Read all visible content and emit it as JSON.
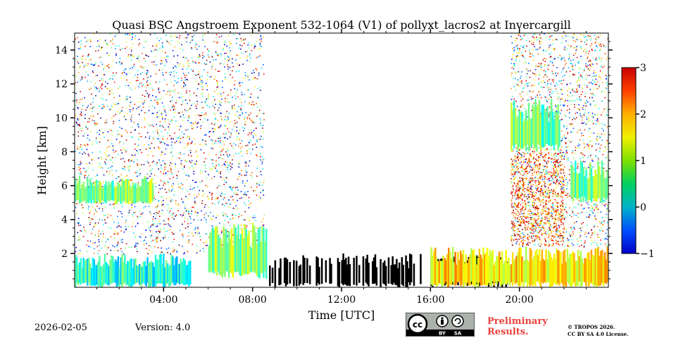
{
  "chart_data": {
    "type": "heatmap",
    "title": "Quasi BSC Angstroem Exponent 532-1064 (V1) of pollyxt_lacros2 at Invercargill",
    "xlabel": "Time [UTC]",
    "ylabel": "Height [km]",
    "xlim": [
      0,
      24
    ],
    "ylim": [
      0,
      15
    ],
    "x_ticks": [
      4,
      8,
      12,
      16,
      20
    ],
    "x_tick_labels": [
      "04:00",
      "08:00",
      "12:00",
      "16:00",
      "20:00"
    ],
    "y_ticks": [
      2,
      4,
      6,
      8,
      10,
      12,
      14
    ],
    "y_tick_labels": [
      "2",
      "4",
      "6",
      "8",
      "10",
      "12",
      "14"
    ],
    "colorbar": {
      "range": [
        -1,
        3
      ],
      "ticks": [
        -1,
        0,
        1,
        2,
        3
      ],
      "tick_labels": [
        "−1",
        "0",
        "1",
        "2",
        "3"
      ],
      "colormap": "jet"
    },
    "regions": [
      {
        "name": "early-boundary-layer",
        "x": [
          0.0,
          5.2
        ],
        "y": [
          0.0,
          2.0
        ],
        "value": 0.6
      },
      {
        "name": "early-aerosol-layer",
        "x": [
          0.0,
          3.5
        ],
        "y": [
          4.9,
          6.6
        ],
        "value": 1.0
      },
      {
        "name": "morning-plume",
        "x": [
          6.0,
          8.6
        ],
        "y": [
          0.5,
          3.8
        ],
        "value": 1.0
      },
      {
        "name": "cloud-base-returns",
        "x": [
          8.5,
          19.5
        ],
        "y": [
          0.0,
          2.0
        ],
        "value": null
      },
      {
        "name": "evening-boundary-layer",
        "x": [
          16.0,
          24.0
        ],
        "y": [
          0.0,
          2.4
        ],
        "value": 1.6
      },
      {
        "name": "evening-cirrus",
        "x": [
          19.6,
          21.8
        ],
        "y": [
          8.0,
          11.2
        ],
        "value": 0.9
      },
      {
        "name": "late-elevated-layer",
        "x": [
          22.3,
          24.0
        ],
        "y": [
          5.0,
          7.5
        ],
        "value": 1.0
      }
    ]
  },
  "footer": {
    "date": "2026-02-05",
    "version": "Version: 4.0",
    "preliminary_line1": "Preliminary",
    "preliminary_line2": "Results.",
    "copyright_line1": "© TROPOS 2026.",
    "copyright_line2": "CC BY SA 4.0 License.",
    "license_badge_by": "BY",
    "license_badge_sa": "SA"
  },
  "colors": {
    "cloud_black": "#000000",
    "prelim_red": "#e8413c"
  }
}
